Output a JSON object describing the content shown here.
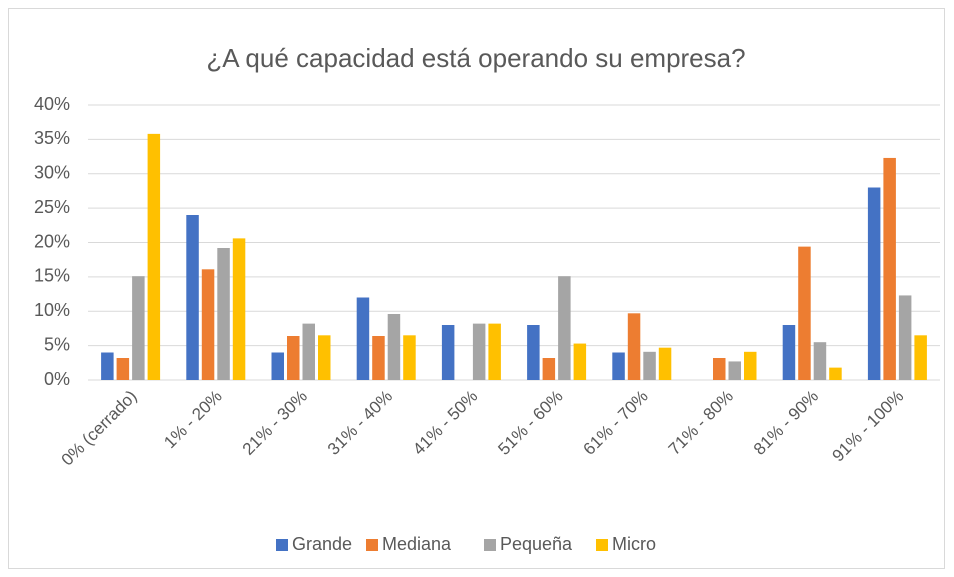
{
  "chart_data": {
    "type": "bar",
    "title": "¿A qué capacidad está operando su empresa?",
    "categories": [
      "0% (cerrado)",
      "1% - 20%",
      "21% - 30%",
      "31% - 40%",
      "41% - 50%",
      "51% - 60%",
      "61% - 70%",
      "71% - 80%",
      "81% - 90%",
      "91% - 100%"
    ],
    "series": [
      {
        "name": "Grande",
        "color": "#4472c4",
        "values": [
          4,
          24,
          4,
          12,
          8,
          8,
          4,
          0,
          8,
          28
        ]
      },
      {
        "name": "Mediana",
        "color": "#ed7d31",
        "values": [
          3.2,
          16.1,
          6.4,
          6.4,
          0,
          3.2,
          9.7,
          3.2,
          19.4,
          32.3
        ]
      },
      {
        "name": "Pequeña",
        "color": "#a5a5a5",
        "values": [
          15.1,
          19.2,
          8.2,
          9.6,
          8.2,
          15.1,
          4.1,
          2.7,
          5.5,
          12.3
        ]
      },
      {
        "name": "Micro",
        "color": "#ffc000",
        "values": [
          35.8,
          20.6,
          6.5,
          6.5,
          8.2,
          5.3,
          4.7,
          4.1,
          1.8,
          6.5
        ]
      }
    ],
    "ylim": [
      0,
      40
    ],
    "yticks": [
      {
        "value": 0,
        "label": "0%"
      },
      {
        "value": 5,
        "label": "5%"
      },
      {
        "value": 10,
        "label": "10%"
      },
      {
        "value": 15,
        "label": "15%"
      },
      {
        "value": 20,
        "label": "20%"
      },
      {
        "value": 25,
        "label": "25%"
      },
      {
        "value": 30,
        "label": "30%"
      },
      {
        "value": 35,
        "label": "35%"
      },
      {
        "value": 40,
        "label": "40%"
      }
    ],
    "grid": true,
    "legend": "bottom"
  }
}
